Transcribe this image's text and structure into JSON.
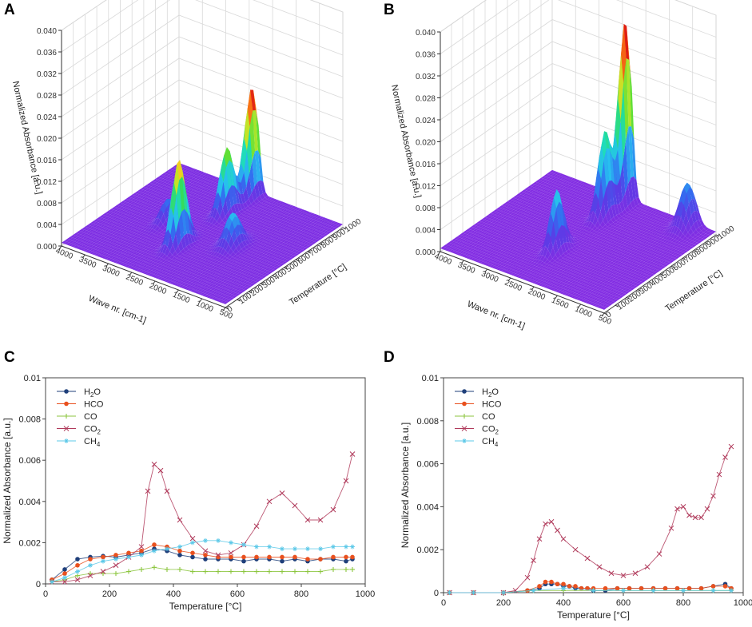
{
  "panels": {
    "A": {
      "letter": "A"
    },
    "B": {
      "letter": "B"
    },
    "C": {
      "letter": "C"
    },
    "D": {
      "letter": "D"
    }
  },
  "colors": {
    "H2O": "#1f3f7a",
    "HCO": "#e8501e",
    "CO": "#8cc63f",
    "CO2": "#b03a5b",
    "CH4": "#5bc8e8"
  },
  "chart_data": [
    {
      "id": "A",
      "type": "surface3d",
      "zlabel": "Normalized Absorbance [a.u.]",
      "xlabel": "Wave nr. [cm-1]",
      "ylabel": "Temperature [°C]",
      "zticks": [
        "0.000",
        "0.004",
        "0.008",
        "0.012",
        "0.016",
        "0.020",
        "0.024",
        "0.028",
        "0.032",
        "0.036",
        "0.040"
      ],
      "xticks": [
        "4000",
        "3500",
        "3000",
        "2500",
        "2000",
        "1500",
        "1000",
        "500"
      ],
      "yticks": [
        "0",
        "100",
        "200",
        "300",
        "400",
        "500",
        "600",
        "700",
        "800",
        "900",
        "1000"
      ],
      "peaks": [
        {
          "wavenumber": 2350,
          "temperature": 340,
          "value": 0.0158
        },
        {
          "wavenumber": 2350,
          "temperature": 750,
          "value": 0.012
        },
        {
          "wavenumber": 2350,
          "temperature": 960,
          "value": 0.02
        },
        {
          "wavenumber": 1600,
          "temperature": 500,
          "value": 0.006
        },
        {
          "wavenumber": 3000,
          "temperature": 500,
          "value": 0.004
        }
      ]
    },
    {
      "id": "B",
      "type": "surface3d",
      "zlabel": "Normalized Absorbance [a.u.]",
      "xlabel": "Wave nr. [cm-1]",
      "ylabel": "Temperature [°C]",
      "zticks": [
        "0.000",
        "0.004",
        "0.008",
        "0.012",
        "0.016",
        "0.020",
        "0.024",
        "0.028",
        "0.032",
        "0.036",
        "0.040"
      ],
      "xticks": [
        "4000",
        "3500",
        "3000",
        "2500",
        "2000",
        "1500",
        "1000",
        "500"
      ],
      "yticks": [
        "0",
        "100",
        "200",
        "300",
        "400",
        "500",
        "600",
        "700",
        "800",
        "900",
        "1000"
      ],
      "peaks": [
        {
          "wavenumber": 2350,
          "temperature": 350,
          "value": 0.011
        },
        {
          "wavenumber": 2350,
          "temperature": 780,
          "value": 0.0155
        },
        {
          "wavenumber": 2350,
          "temperature": 960,
          "value": 0.033
        },
        {
          "wavenumber": 1000,
          "temperature": 950,
          "value": 0.008
        }
      ]
    },
    {
      "id": "C",
      "type": "line",
      "xlabel": "Temperature [°C]",
      "ylabel": "Normalized Absorbance [a.u.]",
      "xlim": [
        0,
        1000
      ],
      "ylim": [
        0,
        0.01
      ],
      "xticks": [
        0,
        200,
        400,
        600,
        800,
        1000
      ],
      "yticks": [
        0,
        0.002,
        0.004,
        0.006,
        0.008,
        0.01
      ],
      "ytick_labels": [
        "0",
        "0.002",
        "0.004",
        "0.006",
        "0.008",
        "0.01"
      ],
      "legend": [
        {
          "key": "H2O",
          "base": "H",
          "sub": "2",
          "tail": "O"
        },
        {
          "key": "HCO",
          "base": "HCO",
          "sub": "",
          "tail": ""
        },
        {
          "key": "CO",
          "base": "CO",
          "sub": "",
          "tail": ""
        },
        {
          "key": "CO2",
          "base": "CO",
          "sub": "2",
          "tail": ""
        },
        {
          "key": "CH4",
          "base": "CH",
          "sub": "4",
          "tail": ""
        }
      ],
      "series": [
        {
          "name": "H2O",
          "marker": "circle",
          "x": [
            20,
            60,
            100,
            140,
            180,
            220,
            260,
            300,
            340,
            380,
            420,
            460,
            500,
            540,
            580,
            620,
            660,
            700,
            740,
            780,
            820,
            860,
            900,
            940,
            960
          ],
          "y": [
            0.0002,
            0.0007,
            0.0012,
            0.0013,
            0.00135,
            0.0013,
            0.0014,
            0.0015,
            0.0017,
            0.0016,
            0.0014,
            0.0013,
            0.0012,
            0.0012,
            0.0012,
            0.0011,
            0.0012,
            0.0012,
            0.0011,
            0.0012,
            0.0011,
            0.0012,
            0.0012,
            0.0011,
            0.0012
          ]
        },
        {
          "name": "HCO",
          "marker": "diamond",
          "x": [
            20,
            60,
            100,
            140,
            180,
            220,
            260,
            300,
            340,
            380,
            420,
            460,
            500,
            540,
            580,
            620,
            660,
            700,
            740,
            780,
            820,
            860,
            900,
            940,
            960
          ],
          "y": [
            0.0002,
            0.0005,
            0.0009,
            0.0012,
            0.0013,
            0.0014,
            0.0015,
            0.0016,
            0.0019,
            0.0018,
            0.0016,
            0.0015,
            0.0014,
            0.0013,
            0.0013,
            0.0013,
            0.0013,
            0.0013,
            0.0013,
            0.0013,
            0.0012,
            0.0012,
            0.0013,
            0.0013,
            0.0013
          ]
        },
        {
          "name": "CO",
          "marker": "plus",
          "x": [
            20,
            60,
            100,
            140,
            180,
            220,
            260,
            300,
            340,
            380,
            420,
            460,
            500,
            540,
            580,
            620,
            660,
            700,
            740,
            780,
            820,
            860,
            900,
            940,
            960
          ],
          "y": [
            0.0001,
            0.0002,
            0.0004,
            0.0005,
            0.0005,
            0.0005,
            0.0006,
            0.0007,
            0.0008,
            0.0007,
            0.0007,
            0.0006,
            0.0006,
            0.0006,
            0.0006,
            0.0006,
            0.0006,
            0.0006,
            0.0006,
            0.0006,
            0.0006,
            0.0006,
            0.0007,
            0.0007,
            0.0007
          ]
        },
        {
          "name": "CO2",
          "marker": "cross",
          "x": [
            20,
            60,
            100,
            140,
            180,
            220,
            260,
            300,
            320,
            340,
            360,
            380,
            420,
            460,
            500,
            540,
            580,
            620,
            660,
            700,
            740,
            780,
            820,
            860,
            900,
            940,
            960
          ],
          "y": [
            0.0001,
            0.0001,
            0.0002,
            0.0004,
            0.0006,
            0.0009,
            0.0013,
            0.0018,
            0.0045,
            0.0058,
            0.0055,
            0.0045,
            0.0031,
            0.0022,
            0.0016,
            0.0014,
            0.0015,
            0.0019,
            0.0028,
            0.004,
            0.0044,
            0.0038,
            0.0031,
            0.0031,
            0.0036,
            0.005,
            0.0063
          ]
        },
        {
          "name": "CH4",
          "marker": "star",
          "x": [
            20,
            60,
            100,
            140,
            180,
            220,
            260,
            300,
            340,
            380,
            420,
            460,
            500,
            540,
            580,
            620,
            660,
            700,
            740,
            780,
            820,
            860,
            900,
            940,
            960
          ],
          "y": [
            0.0001,
            0.0003,
            0.0006,
            0.0009,
            0.0011,
            0.0012,
            0.0013,
            0.0014,
            0.0016,
            0.0017,
            0.0018,
            0.002,
            0.0021,
            0.0021,
            0.002,
            0.0019,
            0.0018,
            0.0018,
            0.0017,
            0.0017,
            0.0017,
            0.0017,
            0.0018,
            0.0018,
            0.0018
          ]
        }
      ]
    },
    {
      "id": "D",
      "type": "line",
      "xlabel": "Temperature [°C]",
      "ylabel": "Normalized Absorbance [a.u.]",
      "xlim": [
        0,
        1000
      ],
      "ylim": [
        0,
        0.01
      ],
      "xticks": [
        0,
        200,
        400,
        600,
        800,
        1000
      ],
      "yticks": [
        0,
        0.002,
        0.004,
        0.006,
        0.008,
        0.01
      ],
      "ytick_labels": [
        "0",
        "0.002",
        "0.004",
        "0.006",
        "0.008",
        "0.01"
      ],
      "legend": [
        {
          "key": "H2O",
          "base": "H",
          "sub": "2",
          "tail": "O"
        },
        {
          "key": "HCO",
          "base": "HCO",
          "sub": "",
          "tail": ""
        },
        {
          "key": "CO",
          "base": "CO",
          "sub": "",
          "tail": ""
        },
        {
          "key": "CO2",
          "base": "CO",
          "sub": "2",
          "tail": ""
        },
        {
          "key": "CH4",
          "base": "CH",
          "sub": "4",
          "tail": ""
        }
      ],
      "series": [
        {
          "name": "H2O",
          "marker": "circle",
          "x": [
            20,
            100,
            200,
            280,
            320,
            340,
            360,
            380,
            400,
            420,
            440,
            460,
            480,
            500,
            540,
            580,
            620,
            660,
            700,
            740,
            780,
            820,
            860,
            900,
            940,
            960
          ],
          "y": [
            0,
            0,
            0,
            0.0001,
            0.0002,
            0.0004,
            0.0004,
            0.0004,
            0.0003,
            0.0003,
            0.0002,
            0.0002,
            0.0002,
            0.0001,
            0.0001,
            0.0002,
            0.0002,
            0.0002,
            0.0002,
            0.0002,
            0.0002,
            0.0002,
            0.0002,
            0.0003,
            0.0004,
            0.0002
          ]
        },
        {
          "name": "HCO",
          "marker": "diamond",
          "x": [
            20,
            100,
            200,
            280,
            320,
            340,
            360,
            380,
            400,
            420,
            440,
            460,
            480,
            500,
            540,
            580,
            620,
            660,
            700,
            740,
            780,
            820,
            860,
            900,
            940,
            960
          ],
          "y": [
            0,
            0,
            0,
            0.0001,
            0.0003,
            0.0005,
            0.0005,
            0.0004,
            0.0004,
            0.0003,
            0.0003,
            0.0002,
            0.0002,
            0.0002,
            0.0002,
            0.0002,
            0.0002,
            0.0002,
            0.0002,
            0.0002,
            0.0002,
            0.0002,
            0.0002,
            0.0003,
            0.0003,
            0.0002
          ]
        },
        {
          "name": "CO",
          "marker": "plus",
          "x": [
            20,
            100,
            200,
            300,
            400,
            500,
            600,
            700,
            800,
            900,
            960
          ],
          "y": [
            0,
            0,
            0,
            0.0001,
            0.0001,
            0.0001,
            0.0001,
            0.0001,
            0.0001,
            0.0001,
            0.0001
          ]
        },
        {
          "name": "CO2",
          "marker": "cross",
          "x": [
            20,
            100,
            200,
            240,
            280,
            300,
            320,
            340,
            360,
            380,
            400,
            440,
            480,
            520,
            560,
            600,
            640,
            680,
            720,
            760,
            780,
            800,
            820,
            840,
            860,
            880,
            900,
            920,
            940,
            960
          ],
          "y": [
            0,
            0,
            0,
            0.0001,
            0.0007,
            0.0015,
            0.0025,
            0.0032,
            0.0033,
            0.0029,
            0.0025,
            0.002,
            0.0016,
            0.0012,
            0.0009,
            0.0008,
            0.0009,
            0.0012,
            0.0018,
            0.003,
            0.0039,
            0.004,
            0.0036,
            0.0035,
            0.0035,
            0.0039,
            0.0045,
            0.0055,
            0.0063,
            0.0068
          ]
        },
        {
          "name": "CH4",
          "marker": "star",
          "x": [
            20,
            100,
            200,
            300,
            400,
            500,
            600,
            700,
            800,
            900,
            960
          ],
          "y": [
            0,
            0,
            0,
            0.0001,
            0.0002,
            0.0001,
            0.0001,
            0.0001,
            0.0001,
            0.0001,
            0.0001
          ]
        }
      ]
    }
  ]
}
